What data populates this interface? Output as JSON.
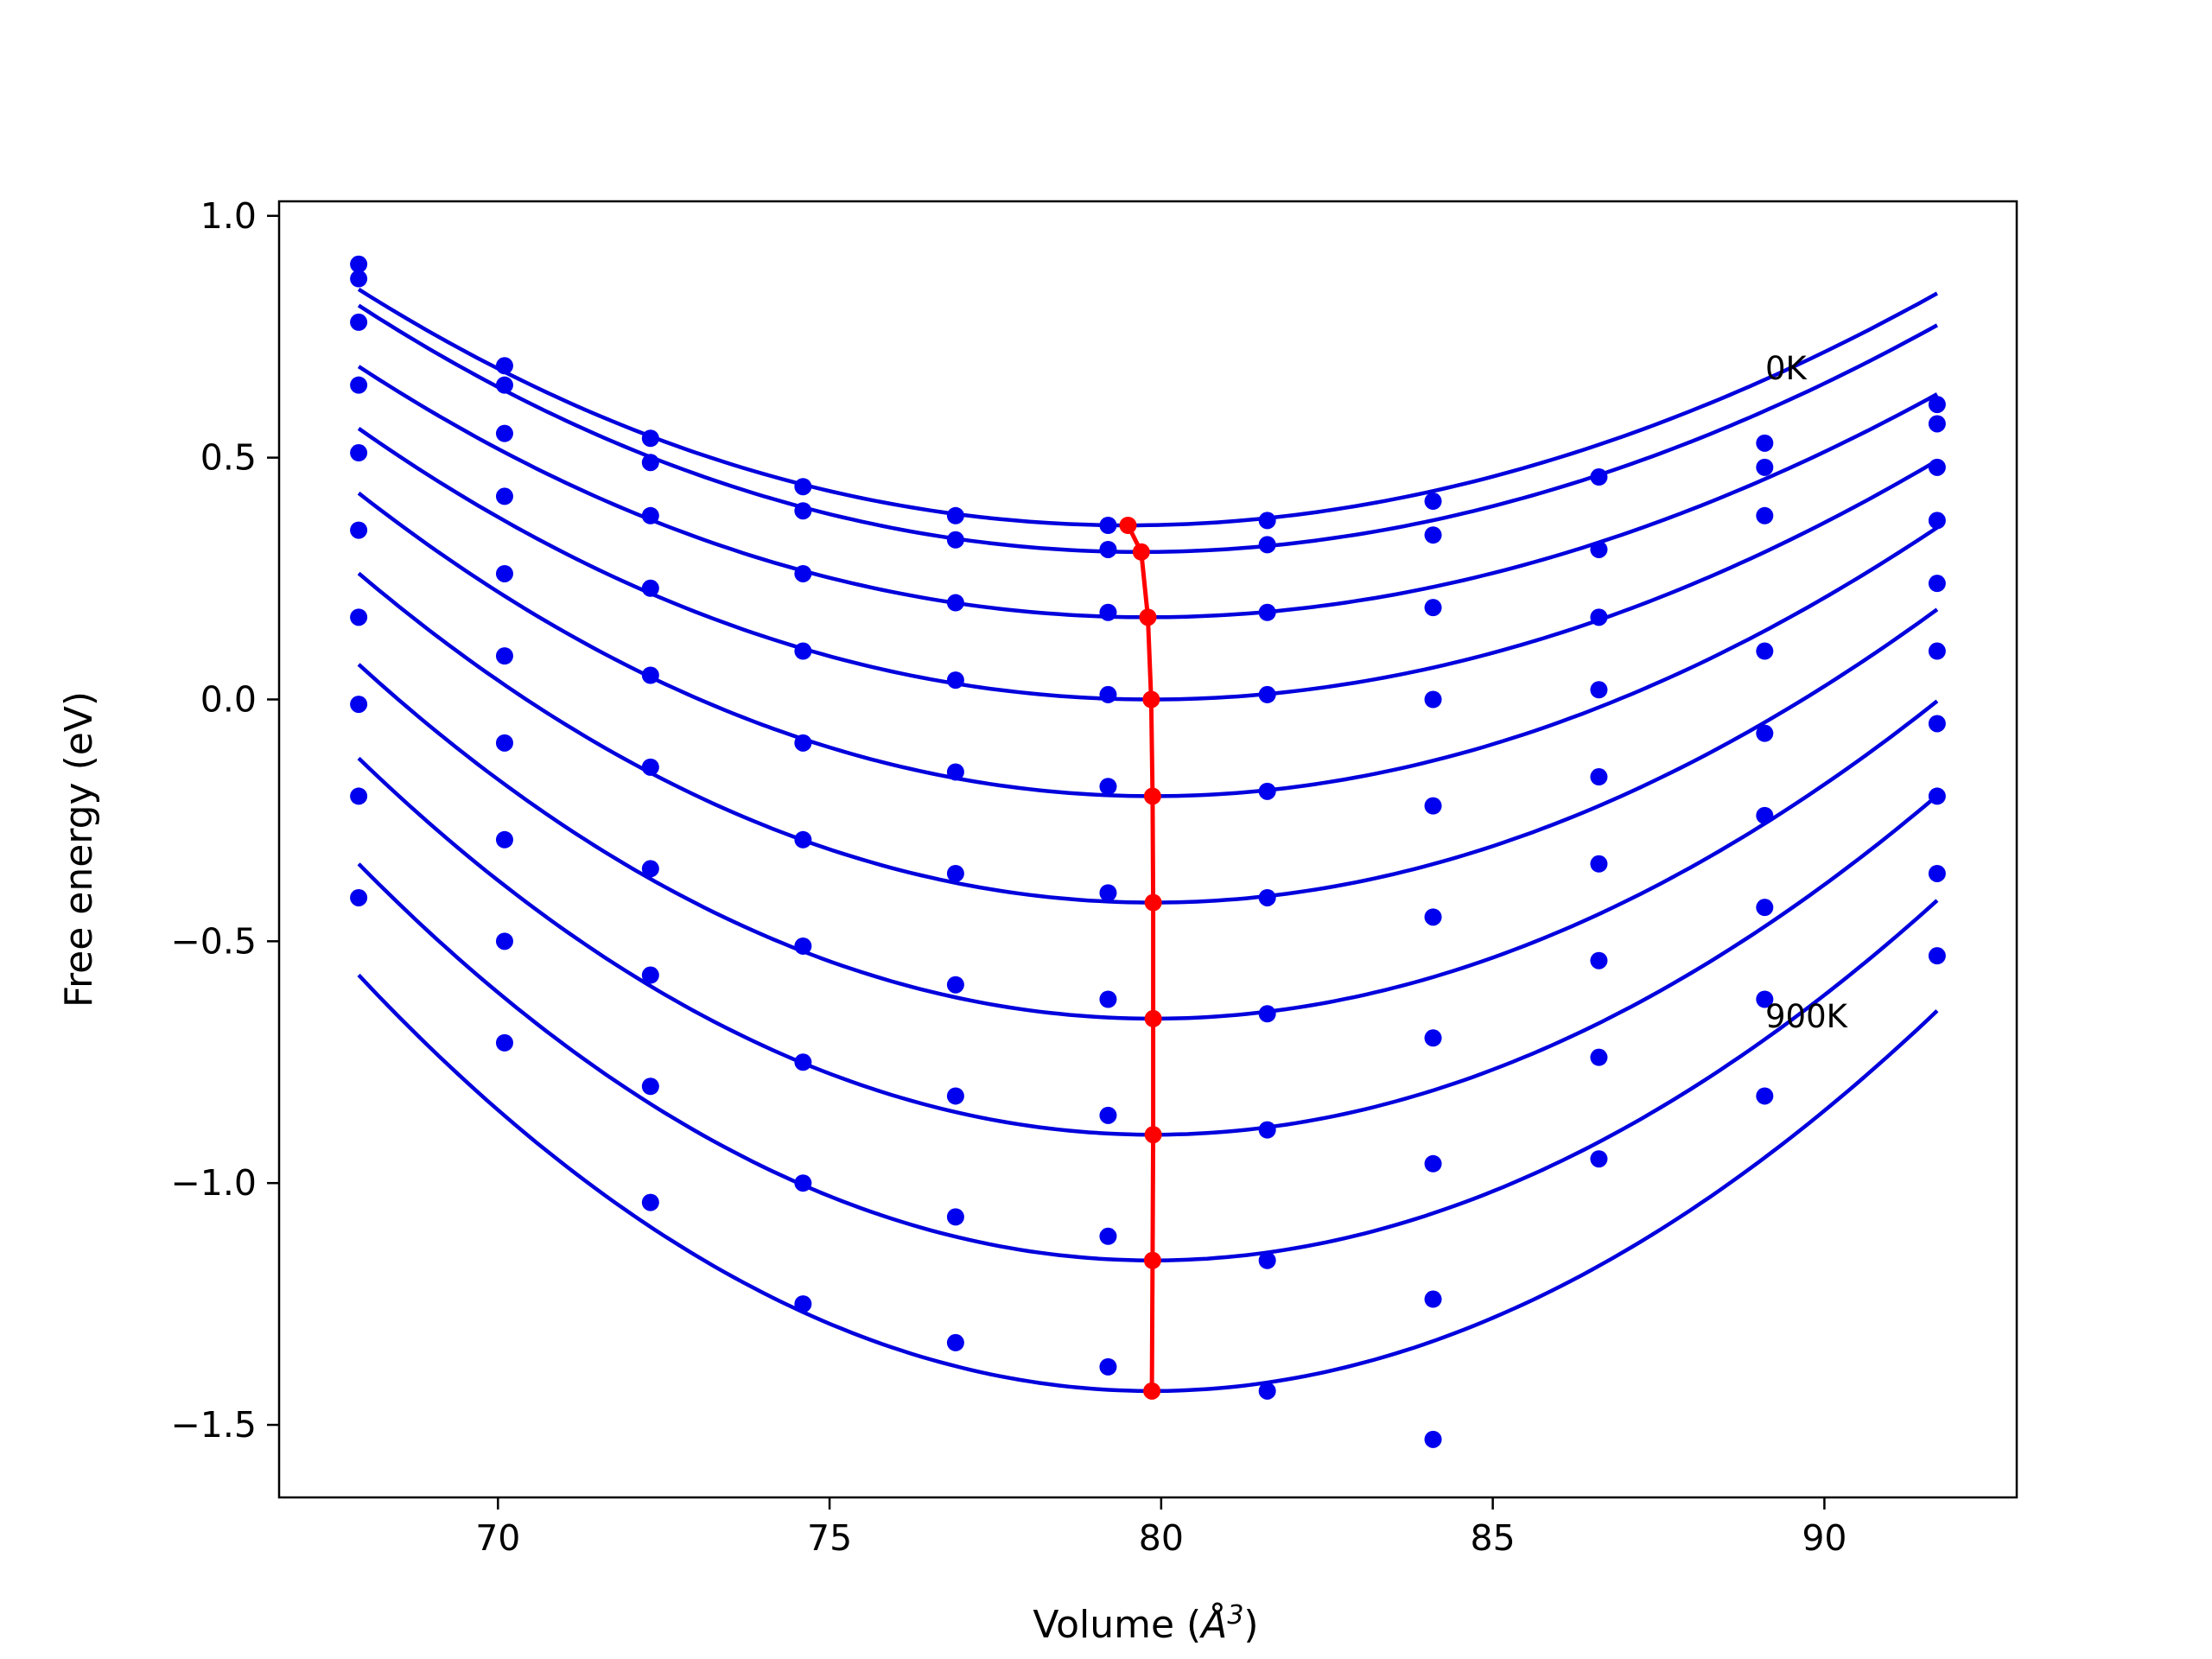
{
  "chart_data": {
    "type": "scatter",
    "title": "",
    "xlabel": "Volume (",
    "xlabel_symbol": "Å",
    "xlabel_sup": "3",
    "xlabel_end": ")",
    "ylabel": "Free energy (eV)",
    "xlim": [
      66.7,
      92.9
    ],
    "ylim": [
      -1.65,
      1.03
    ],
    "xticks": [
      70,
      75,
      80,
      85,
      90
    ],
    "xtick_labels": [
      "70",
      "75",
      "80",
      "85",
      "90"
    ],
    "yticks": [
      1.0,
      0.5,
      0.0,
      -0.5,
      -1.0,
      -1.5
    ],
    "ytick_labels": [
      "1.0",
      "0.5",
      "0.0",
      "−0.5",
      "−1.0",
      "−1.5"
    ],
    "grid": false,
    "annotations": [
      {
        "text": "0K",
        "x": 89.2,
        "y": 0.67
      },
      {
        "text": "900K",
        "x": 89.2,
        "y": -0.66
      }
    ],
    "colors": {
      "data": "#0000ee",
      "fit": "#0000dd",
      "minimum": "#ff0000"
    },
    "x": [
      67.9,
      70.1,
      72.3,
      74.6,
      76.9,
      79.2,
      81.6,
      84.1,
      86.6,
      89.1,
      91.7
    ],
    "series": [
      {
        "values": [
          0.9,
          0.69,
          0.54,
          0.44,
          0.38,
          0.36,
          0.37,
          0.41,
          0.46,
          0.53,
          0.61
        ],
        "fit": {
          "v0": 79.5,
          "e0": 0.36,
          "k": 0.00343,
          "c": -1.7e-05
        }
      },
      {
        "values": [
          0.87,
          0.65,
          0.49,
          0.39,
          0.33,
          0.31,
          0.32,
          0.34,
          0.31,
          0.48,
          0.57
        ],
        "fit": {
          "v0": 79.7,
          "e0": 0.305,
          "k": 0.00346,
          "c": -1.7e-05
        }
      },
      {
        "values": [
          0.78,
          0.55,
          0.38,
          0.26,
          0.2,
          0.18,
          0.18,
          0.19,
          0.17,
          0.38,
          0.48
        ],
        "fit": {
          "v0": 79.8,
          "e0": 0.17,
          "k": 0.00346,
          "c": -1.7e-05
        }
      },
      {
        "values": [
          0.65,
          0.42,
          0.23,
          0.1,
          0.04,
          0.01,
          0.01,
          0.0,
          0.02,
          0.1,
          0.37
        ],
        "fit": {
          "v0": 79.85,
          "e0": 0.0,
          "k": 0.00372,
          "c": -1.7e-05
        }
      },
      {
        "values": [
          0.51,
          0.26,
          0.05,
          -0.09,
          -0.15,
          -0.18,
          -0.19,
          -0.22,
          -0.16,
          -0.07,
          0.24
        ],
        "fit": {
          "v0": 79.87,
          "e0": -0.2,
          "k": 0.00417,
          "c": -1.7e-05
        }
      },
      {
        "values": [
          0.35,
          0.09,
          -0.14,
          -0.29,
          -0.36,
          -0.4,
          -0.41,
          -0.45,
          -0.34,
          -0.24,
          0.1
        ],
        "fit": {
          "v0": 79.88,
          "e0": -0.42,
          "k": 0.00454,
          "c": -1.7e-05
        }
      },
      {
        "values": [
          0.17,
          -0.09,
          -0.35,
          -0.51,
          -0.59,
          -0.62,
          -0.65,
          -0.7,
          -0.54,
          -0.43,
          -0.05
        ],
        "fit": {
          "v0": 79.88,
          "e0": -0.66,
          "k": 0.0049,
          "c": -1.7e-05
        }
      },
      {
        "values": [
          -0.01,
          -0.29,
          -0.57,
          -0.75,
          -0.82,
          -0.86,
          -0.89,
          -0.96,
          -0.74,
          -0.62,
          -0.2
        ],
        "fit": {
          "v0": 79.88,
          "e0": -0.9,
          "k": 0.00522,
          "c": -1.7e-05
        }
      },
      {
        "values": [
          -0.2,
          -0.5,
          -0.8,
          -1.0,
          -1.07,
          -1.11,
          -1.16,
          -1.24,
          -0.95,
          -0.82,
          -0.36
        ],
        "fit": {
          "v0": 79.87,
          "e0": -1.16,
          "k": 0.00552,
          "c": -1.7e-05
        }
      },
      {
        "values": [
          -0.41,
          -0.71,
          -1.04,
          -1.25,
          -1.33,
          -1.38,
          -1.43,
          -1.53,
          null,
          null,
          -0.53
        ],
        "fit": {
          "v0": 79.86,
          "e0": -1.43,
          "k": 0.00581,
          "c": -1.7e-05
        }
      }
    ],
    "minimum_curve": {
      "x": [
        79.5,
        79.7,
        79.8,
        79.85,
        79.87,
        79.88,
        79.88,
        79.88,
        79.87,
        79.86
      ],
      "y": [
        0.36,
        0.305,
        0.17,
        0.0,
        -0.2,
        -0.42,
        -0.66,
        -0.9,
        -1.16,
        -1.43
      ]
    }
  }
}
